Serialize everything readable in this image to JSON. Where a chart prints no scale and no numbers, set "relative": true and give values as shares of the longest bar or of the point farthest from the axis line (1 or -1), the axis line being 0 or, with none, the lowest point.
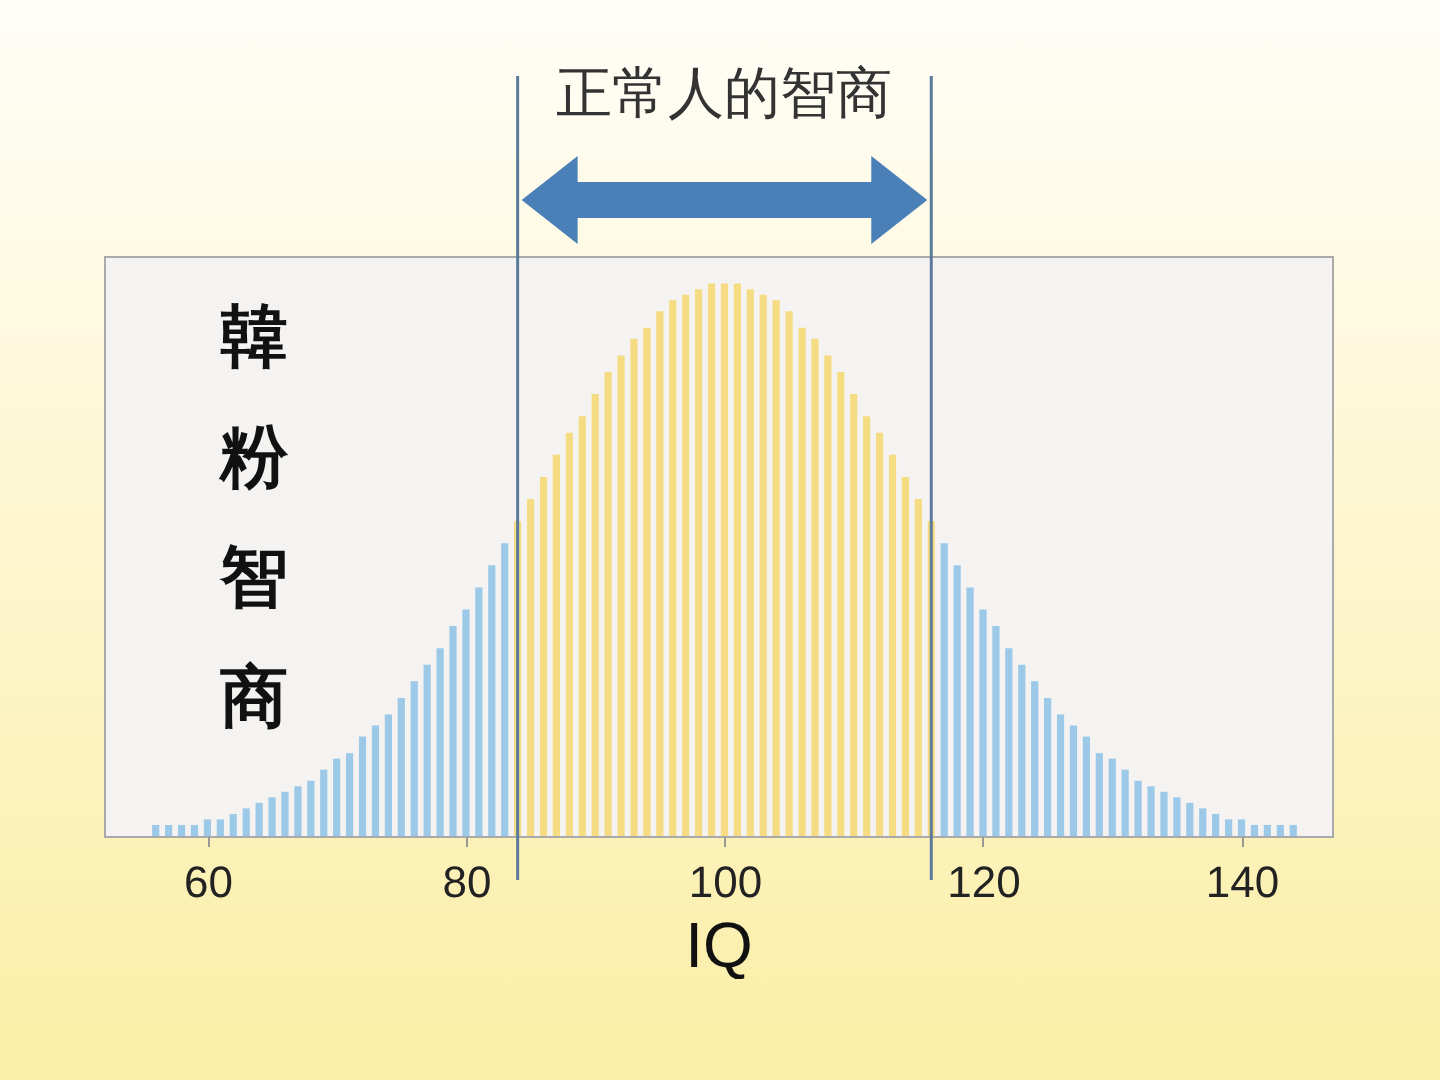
{
  "chart_data": {
    "type": "bar",
    "relative": true,
    "xlabel": "IQ",
    "xlim": [
      52,
      147
    ],
    "xticks": [
      60,
      80,
      100,
      120,
      140
    ],
    "x": [
      56,
      57,
      58,
      59,
      60,
      61,
      62,
      63,
      64,
      65,
      66,
      67,
      68,
      69,
      70,
      71,
      72,
      73,
      74,
      75,
      76,
      77,
      78,
      79,
      80,
      81,
      82,
      83,
      84,
      85,
      86,
      87,
      88,
      89,
      90,
      91,
      92,
      93,
      94,
      95,
      96,
      97,
      98,
      99,
      100,
      101,
      102,
      103,
      104,
      105,
      106,
      107,
      108,
      109,
      110,
      111,
      112,
      113,
      114,
      115,
      116,
      117,
      118,
      119,
      120,
      121,
      122,
      123,
      124,
      125,
      126,
      127,
      128,
      129,
      130,
      131,
      132,
      133,
      134,
      135,
      136,
      137,
      138,
      139,
      140,
      141,
      142,
      143,
      144
    ],
    "values": [
      0.02,
      0.02,
      0.02,
      0.02,
      0.03,
      0.03,
      0.04,
      0.05,
      0.06,
      0.07,
      0.08,
      0.09,
      0.1,
      0.12,
      0.14,
      0.15,
      0.18,
      0.2,
      0.22,
      0.25,
      0.28,
      0.31,
      0.34,
      0.38,
      0.41,
      0.45,
      0.49,
      0.53,
      0.57,
      0.61,
      0.65,
      0.69,
      0.73,
      0.76,
      0.8,
      0.84,
      0.87,
      0.9,
      0.92,
      0.95,
      0.97,
      0.98,
      0.99,
      1.0,
      1.0,
      1.0,
      0.99,
      0.98,
      0.97,
      0.95,
      0.92,
      0.9,
      0.87,
      0.84,
      0.8,
      0.76,
      0.73,
      0.69,
      0.65,
      0.61,
      0.57,
      0.53,
      0.49,
      0.45,
      0.41,
      0.38,
      0.34,
      0.31,
      0.28,
      0.25,
      0.22,
      0.2,
      0.18,
      0.15,
      0.14,
      0.12,
      0.1,
      0.09,
      0.08,
      0.07,
      0.06,
      0.05,
      0.04,
      0.03,
      0.03,
      0.02,
      0.02,
      0.02,
      0.02
    ],
    "colors": [
      "#9cc9e8",
      "#9cc9e8",
      "#9cc9e8",
      "#9cc9e8",
      "#9cc9e8",
      "#9cc9e8",
      "#9cc9e8",
      "#9cc9e8",
      "#9cc9e8",
      "#9cc9e8",
      "#9cc9e8",
      "#9cc9e8",
      "#9cc9e8",
      "#9cc9e8",
      "#9cc9e8",
      "#9cc9e8",
      "#9cc9e8",
      "#9cc9e8",
      "#9cc9e8",
      "#9cc9e8",
      "#9cc9e8",
      "#9cc9e8",
      "#9cc9e8",
      "#9cc9e8",
      "#9cc9e8",
      "#9cc9e8",
      "#9cc9e8",
      "#9cc9e8",
      "#f5dc82",
      "#f5dc82",
      "#f5dc82",
      "#f5dc82",
      "#f5dc82",
      "#f5dc82",
      "#f5dc82",
      "#f5dc82",
      "#f5dc82",
      "#f5dc82",
      "#f5dc82",
      "#f5dc82",
      "#f5dc82",
      "#f5dc82",
      "#f5dc82",
      "#f5dc82",
      "#f5dc82",
      "#f5dc82",
      "#f5dc82",
      "#f5dc82",
      "#f5dc82",
      "#f5dc82",
      "#f5dc82",
      "#f5dc82",
      "#f5dc82",
      "#f5dc82",
      "#f5dc82",
      "#f5dc82",
      "#f5dc82",
      "#f5dc82",
      "#f5dc82",
      "#f5dc82",
      "#f5dc82",
      "#9cc9e8",
      "#9cc9e8",
      "#9cc9e8",
      "#9cc9e8",
      "#9cc9e8",
      "#9cc9e8",
      "#9cc9e8",
      "#9cc9e8",
      "#9cc9e8",
      "#9cc9e8",
      "#9cc9e8",
      "#9cc9e8",
      "#9cc9e8",
      "#9cc9e8",
      "#9cc9e8",
      "#9cc9e8",
      "#9cc9e8",
      "#9cc9e8",
      "#9cc9e8",
      "#9cc9e8",
      "#9cc9e8",
      "#9cc9e8",
      "#9cc9e8",
      "#9cc9e8",
      "#9cc9e8",
      "#9cc9e8",
      "#9cc9e8",
      "#9cc9e8"
    ],
    "ref_lines": [
      {
        "axis": "x",
        "value": 84,
        "color": "#5b7b9a"
      },
      {
        "axis": "x",
        "value": 116,
        "color": "#5b7b9a"
      }
    ],
    "annotations": [
      "正常人的智商",
      "韓粉智商"
    ],
    "grid": false
  }
}
